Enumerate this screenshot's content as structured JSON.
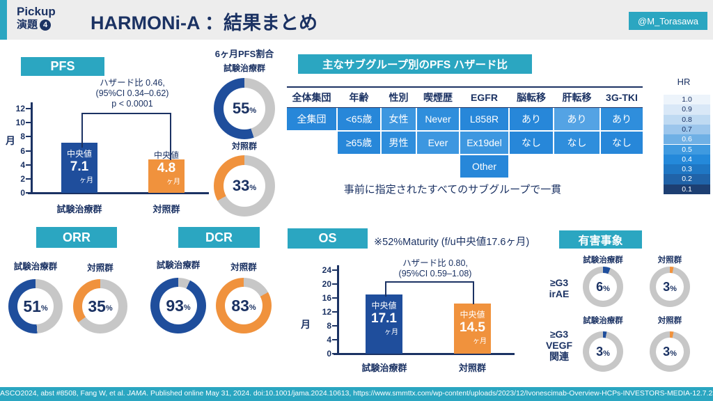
{
  "colors": {
    "teal": "#2BA6C1",
    "navy": "#1B3263",
    "blue": "#1F4E9C",
    "orange": "#F0923D",
    "donut_gray": "#C7C7C7"
  },
  "header": {
    "pickup_line1": "Pickup",
    "pickup_word": "演題",
    "pickup_number": "4",
    "title": "HARMONi-A ：結果まとめ",
    "badge": "@M_Torasawa"
  },
  "pfs": {
    "label": "PFS",
    "hazard_lines": [
      "ハザード比 0.46,",
      "(95%CI 0.34–0.62)",
      "p < 0.0001"
    ],
    "unit_label": "月",
    "y_ticks": [
      12,
      10,
      8,
      6,
      4,
      2,
      0
    ],
    "y_max": 12,
    "bars": [
      {
        "group": "試験治療群",
        "median_label": "中央値",
        "value": 7.1,
        "value_text": "7.1",
        "unit": "ヶ月",
        "color": "#1F4E9C",
        "median_inside": true
      },
      {
        "group": "対照群",
        "median_label": "中央値",
        "value": 4.8,
        "value_text": "4.8",
        "unit": "ヶ月",
        "color": "#F0923D",
        "median_inside": false
      }
    ]
  },
  "pfs6m": {
    "title": "6ヶ月PFS割合",
    "donuts": [
      {
        "label": "試験治療群",
        "value": 55,
        "value_text": "55",
        "suffix": "%",
        "color": "#1F4E9C",
        "direction": "ccw"
      },
      {
        "label": "対照群",
        "value": 33,
        "value_text": "33",
        "suffix": "%",
        "color": "#F0923D",
        "direction": "ccw"
      }
    ]
  },
  "subgroup": {
    "title": "主なサブグループ別のPFS ハザード比",
    "columns": [
      "全体集団",
      "年齢",
      "性別",
      "喫煙歴",
      "EGFR",
      "脳転移",
      "肝転移",
      "3G-TKI"
    ],
    "rows": [
      [
        {
          "text": "全集団",
          "bg": "#2787D9"
        },
        {
          "text": "<65歳",
          "bg": "#2787D9"
        },
        {
          "text": "女性",
          "bg": "#3D97E0"
        },
        {
          "text": "Never",
          "bg": "#2F8EDC"
        },
        {
          "text": "L858R",
          "bg": "#2787D9"
        },
        {
          "text": "あり",
          "bg": "#2787D9"
        },
        {
          "text": "あり",
          "bg": "#54A3E4"
        },
        {
          "text": "あり",
          "bg": "#2F8EDC"
        }
      ],
      [
        null,
        {
          "text": "≥65歳",
          "bg": "#2787D9"
        },
        {
          "text": "男性",
          "bg": "#2F8EDC"
        },
        {
          "text": "Ever",
          "bg": "#3D97E0"
        },
        {
          "text": "Ex19del",
          "bg": "#3D97E0"
        },
        {
          "text": "なし",
          "bg": "#2787D9"
        },
        {
          "text": "なし",
          "bg": "#2F8EDC"
        },
        {
          "text": "なし",
          "bg": "#2787D9"
        }
      ],
      [
        null,
        null,
        null,
        null,
        {
          "text": "Other",
          "bg": "#2787D9"
        },
        null,
        null,
        null
      ]
    ],
    "note": "事前に指定されたすべてのサブグループで一貫",
    "legend_title": "HR",
    "legend": [
      {
        "value": "1.0",
        "color": "#EDF4FB",
        "text": "dark"
      },
      {
        "value": "0.9",
        "color": "#D9E8F7",
        "text": "dark"
      },
      {
        "value": "0.8",
        "color": "#BFDAF2",
        "text": "dark"
      },
      {
        "value": "0.7",
        "color": "#9CC6EC",
        "text": "dark"
      },
      {
        "value": "0.6",
        "color": "#6FB0E5",
        "text": "light"
      },
      {
        "value": "0.5",
        "color": "#3F9AE0",
        "text": "light"
      },
      {
        "value": "0.4",
        "color": "#2489DA",
        "text": "light"
      },
      {
        "value": "0.3",
        "color": "#1F77C4",
        "text": "light"
      },
      {
        "value": "0.2",
        "color": "#2063A8",
        "text": "light"
      },
      {
        "value": "0.1",
        "color": "#1D3F72",
        "text": "light"
      }
    ]
  },
  "orr": {
    "label": "ORR",
    "donuts": [
      {
        "label": "試験治療群",
        "value": 51,
        "value_text": "51",
        "suffix": "%",
        "color": "#1F4E9C",
        "direction": "ccw"
      },
      {
        "label": "対照群",
        "value": 35,
        "value_text": "35",
        "suffix": "%",
        "color": "#F0923D",
        "direction": "ccw"
      }
    ]
  },
  "dcr": {
    "label": "DCR",
    "donuts": [
      {
        "label": "試験治療群",
        "value": 93,
        "value_text": "93",
        "suffix": "%",
        "color": "#1F4E9C",
        "direction": "ccw"
      },
      {
        "label": "対照群",
        "value": 83,
        "value_text": "83",
        "suffix": "%",
        "color": "#F0923D",
        "direction": "ccw"
      }
    ]
  },
  "os": {
    "label": "OS",
    "note": "※52%Maturity (f/u中央値17.6ヶ月)",
    "hazard_lines": [
      "ハザード比 0.80,",
      "(95%CI 0.59–1.08)"
    ],
    "unit_label": "月",
    "y_ticks": [
      24,
      20,
      16,
      12,
      8,
      4,
      0
    ],
    "y_max": 24,
    "bars": [
      {
        "group": "試験治療群",
        "median_label": "中央値",
        "value": 17.1,
        "value_text": "17.1",
        "unit": "ヶ月",
        "color": "#1F4E9C",
        "median_inside": true
      },
      {
        "group": "対照群",
        "median_label": "中央値",
        "value": 14.5,
        "value_text": "14.5",
        "unit": "ヶ月",
        "color": "#F0923D",
        "median_inside": true
      }
    ]
  },
  "adverse": {
    "label": "有害事象",
    "rows": [
      {
        "row_label_lines": [
          "≥G3",
          "irAE"
        ],
        "donuts": [
          {
            "label": "試験治療群",
            "value": 6,
            "value_text": "6",
            "suffix": "%",
            "color": "#1F4E9C",
            "direction": "cw"
          },
          {
            "label": "対照群",
            "value": 3,
            "value_text": "3",
            "suffix": "%",
            "color": "#F0923D",
            "direction": "cw"
          }
        ]
      },
      {
        "row_label_lines": [
          "≥G3",
          "VEGF",
          "関連"
        ],
        "donuts": [
          {
            "label": "試験治療群",
            "value": 3,
            "value_text": "3",
            "suffix": "%",
            "color": "#1F4E9C",
            "direction": "cw"
          },
          {
            "label": "対照群",
            "value": 3,
            "value_text": "3",
            "suffix": "%",
            "color": "#F0923D",
            "direction": "cw"
          }
        ]
      }
    ]
  },
  "footer": {
    "pre": "ASCO2024, abst #8508, Fang W, et al. ",
    "italic": "JAMA",
    "post": ". Published online May 31, 2024. doi:10.1001/jama.2024.10613, https://www.smmttx.com/wp-content/uploads/2023/12/Ivonescimab-Overview-HCPs-INVESTORS-MEDIA-12.7.23.pdf"
  },
  "chart_data": [
    {
      "type": "bar",
      "title": "PFS",
      "categories": [
        "試験治療群",
        "対照群"
      ],
      "values": [
        7.1,
        4.8
      ],
      "ylabel": "月",
      "ylim": [
        0,
        12
      ],
      "yticks": [
        0,
        2,
        4,
        6,
        8,
        10,
        12
      ],
      "unit": "ヶ月",
      "annotation": "ハザード比 0.46, (95%CI 0.34–0.62) p < 0.0001",
      "colors": [
        "#1F4E9C",
        "#F0923D"
      ]
    },
    {
      "type": "pie",
      "title": "6ヶ月PFS割合",
      "series": [
        {
          "name": "試験治療群",
          "value_pct": 55,
          "color": "#1F4E9C"
        },
        {
          "name": "対照群",
          "value_pct": 33,
          "color": "#F0923D"
        }
      ]
    },
    {
      "type": "table",
      "title": "主なサブグループ別のPFS ハザード比",
      "columns": [
        "全体集団",
        "年齢",
        "性別",
        "喫煙歴",
        "EGFR",
        "脳転移",
        "肝転移",
        "3G-TKI"
      ],
      "rows": [
        [
          "全集団",
          "<65歳",
          "女性",
          "Never",
          "L858R",
          "あり",
          "あり",
          "あり"
        ],
        [
          "",
          "≥65歳",
          "男性",
          "Ever",
          "Ex19del",
          "なし",
          "なし",
          "なし"
        ],
        [
          "",
          "",
          "",
          "",
          "Other",
          "",
          "",
          ""
        ]
      ],
      "legend": {
        "title": "HR",
        "scale": [
          1.0,
          0.9,
          0.8,
          0.7,
          0.6,
          0.5,
          0.4,
          0.3,
          0.2,
          0.1
        ]
      },
      "note": "事前に指定されたすべてのサブグループで一貫"
    },
    {
      "type": "pie",
      "title": "ORR",
      "series": [
        {
          "name": "試験治療群",
          "value_pct": 51,
          "color": "#1F4E9C"
        },
        {
          "name": "対照群",
          "value_pct": 35,
          "color": "#F0923D"
        }
      ]
    },
    {
      "type": "pie",
      "title": "DCR",
      "series": [
        {
          "name": "試験治療群",
          "value_pct": 93,
          "color": "#1F4E9C"
        },
        {
          "name": "対照群",
          "value_pct": 83,
          "color": "#F0923D"
        }
      ]
    },
    {
      "type": "bar",
      "title": "OS",
      "subtitle": "※52%Maturity (f/u中央値17.6ヶ月)",
      "categories": [
        "試験治療群",
        "対照群"
      ],
      "values": [
        17.1,
        14.5
      ],
      "ylabel": "月",
      "ylim": [
        0,
        24
      ],
      "yticks": [
        0,
        4,
        8,
        12,
        16,
        20,
        24
      ],
      "unit": "ヶ月",
      "annotation": "ハザード比 0.80, (95%CI 0.59–1.08)",
      "colors": [
        "#1F4E9C",
        "#F0923D"
      ]
    },
    {
      "type": "pie",
      "title": "有害事象",
      "series": [
        {
          "name": "≥G3 irAE 試験治療群",
          "value_pct": 6,
          "color": "#1F4E9C"
        },
        {
          "name": "≥G3 irAE 対照群",
          "value_pct": 3,
          "color": "#F0923D"
        },
        {
          "name": "≥G3 VEGF関連 試験治療群",
          "value_pct": 3,
          "color": "#1F4E9C"
        },
        {
          "name": "≥G3 VEGF関連 対照群",
          "value_pct": 3,
          "color": "#F0923D"
        }
      ]
    }
  ]
}
